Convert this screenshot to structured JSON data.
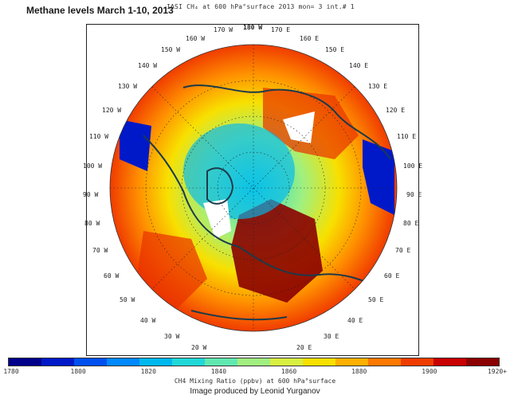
{
  "title": "Methane levels March 1-10, 2013",
  "plot_header": "IASI CH₄ at 600 hPa°surface 2013 mon= 3 int.# 1",
  "longitude_labels": {
    "top": "180 W",
    "l170w": "170 W",
    "l160w": "160 W",
    "l150w": "150 W",
    "l140w": "140 W",
    "l130w": "130 W",
    "l120w": "120 W",
    "l110w": "110 W",
    "l100w": "100 W",
    "l90w": "90 W",
    "l80w": "80 W",
    "l70w": "70 W",
    "l60w": "60 W",
    "l50w": "50 W",
    "l40w": "40 W",
    "l30w": "30 W",
    "l20w": "20 W",
    "l170e": "170 E",
    "l160e": "160 E",
    "l150e": "150 E",
    "l140e": "140 E",
    "l130e": "130 E",
    "l120e": "120 E",
    "l110e": "110 E",
    "l100e": "100 E",
    "l90e": "90 E",
    "l80e": "80 E",
    "l70e": "70 E",
    "l60e": "60 E",
    "l50e": "50 E",
    "l40e": "40 E",
    "l30e": "30 E",
    "l20e": "20 E"
  },
  "colorbar": {
    "ticks": [
      "1780",
      "1800",
      "1820",
      "1840",
      "1860",
      "1880",
      "1900",
      "1920+"
    ],
    "label": "CH4 Mixing Ratio (ppbv) at 600 hPa°surface",
    "colors": [
      "#00008b",
      "#0019c8",
      "#0050f0",
      "#0088ff",
      "#00b8f0",
      "#20d8d8",
      "#60e8b0",
      "#a0f080",
      "#d8f040",
      "#f8e000",
      "#ffb000",
      "#ff7800",
      "#f03c00",
      "#c80000",
      "#8b0000"
    ]
  },
  "credit": "Image produced by Leonid Yurganov"
}
